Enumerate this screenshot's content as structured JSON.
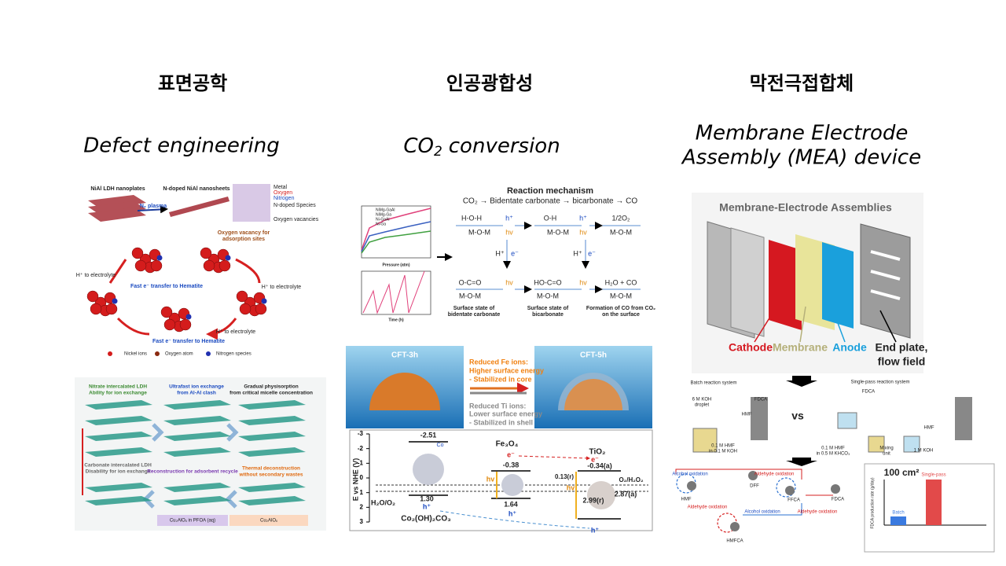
{
  "slide": {
    "columns": [
      {
        "heading": "표면공학",
        "subtitle": "Defect engineering",
        "figures": [
          {
            "labels": [
              "NiAl LDH nanoplates",
              "N-doped NiAl nanosheets",
              "N₂ plasma",
              "Metal",
              "Oxygen",
              "Nitrogen",
              "N-doped Species",
              "Oxygen vacancies",
              "Oxygen vacancy for",
              "adsorption sites",
              "H⁺ to electrolyte",
              "Fast e⁻ transfer to Hematite",
              "H⁺ to electrolyte",
              "Fast e⁻ transfer to Hematite",
              "Nickel ions",
              "Oxygen atom",
              "Nitrogen species",
              "H⁺ to electrolyte"
            ]
          },
          {
            "labels": [
              "Nitrate intercalated LDH",
              "Ability for ion exchange",
              "Ultrafast ion exchange",
              "from Al-Al clash",
              "Gradual physisorption",
              "from critical micelle concentration",
              "Carbonate intercalated LDH",
              "Disability for ion exchange",
              "Reconstruction for adsorbent recycle",
              "Thermal deconstruction",
              "without secondary wastes",
              "Cu₂AlOₓ in PFOA (aq)",
              "Cu₂AlOₓ"
            ]
          }
        ]
      },
      {
        "heading": "인공광합성",
        "subtitle": {
          "text": "CO",
          "sub": "2",
          "rest": "conversion"
        },
        "figures": [
          {
            "labels": [
              "Reaction mechanism",
              "CO₂ → Bidentate carbonate → bicarbonate → CO",
              "H-O-H",
              "M-O-M",
              "h⁺",
              "hv",
              "O-H",
              "M-O-M",
              "h⁺",
              "hv",
              "1/2O₂",
              "M-O-M",
              "H⁺",
              "e⁻",
              "H⁺",
              "e⁻",
              "O-C=O",
              "M-O-M",
              "hv",
              "HO-C=O",
              "M-O-M",
              "hv",
              "H₂O + CO",
              "M-O-M",
              "Surface state of",
              "bidentate carbonate",
              "Surface state of",
              "bicarbonate",
              "Formation of CO from CO₂",
              "on the surface",
              "Pressure (atm)",
              "Time (h)",
              "NiMg-GaAl",
              "NiMg-Ga",
              "Ni-GaAl",
              "Ni-Ga"
            ]
          },
          {
            "labels": [
              "CFT-3h",
              "CFT-5h",
              "Reduced Fe ions:",
              "Higher surface energy",
              "- Stabilized in core",
              "Reduced Ti ions:",
              "Lower surface energy",
              "- Stabilized in shell"
            ]
          },
          {
            "labels": [
              "E vs NHE (V)",
              "-2.51",
              "Co",
              "Fe₃O₄",
              "e⁻",
              "-0.38",
              "TiO₂",
              "e⁻",
              "-0.34(a)",
              "0.13(r)",
              "O₂/H₂O₂",
              "H₂O/O₂",
              "1.30",
              "h⁺",
              "1.64",
              "Co₂(OH)₂CO₃",
              "h⁺",
              "2.99(r)",
              "2.87(a)",
              "h⁺",
              "hv",
              "hv"
            ],
            "ticks": [
              -3,
              -2,
              -1,
              0,
              1,
              2,
              3
            ]
          }
        ]
      },
      {
        "heading": "막전극접합체",
        "subtitle_lines": [
          "Membrane Electrode",
          "Assembly (MEA) device"
        ],
        "figures": [
          {
            "labels": [
              "Membrane-Electrode Assemblies",
              "Cathode",
              "Membrane",
              "Anode",
              "End plate,",
              "flow field"
            ]
          },
          {
            "labels": [
              "Batch reaction system",
              "6 M KOH",
              "droplet",
              "FDCA",
              "HMF",
              "0.1 M HMF",
              "in 0.1 M KOH",
              "vs",
              "Single-pass reaction system",
              "FDCA",
              "HMF",
              "0.1 M HMF",
              "in 0.5 M KHCO₃",
              "Mixing",
              "unit",
              "1 M KOH"
            ]
          },
          {
            "labels": [
              "Alcohol oxidation",
              "Aldehyde oxidation",
              "HMF",
              "DFF",
              "Aldehyde oxidation",
              "FFCA",
              "FDCA",
              "HMFCA",
              "Alcohol oxidation",
              "Aldehyde oxidation",
              "100 cm²",
              "Batch",
              "Single-pass",
              "FDCA production rate (g/day)"
            ]
          }
        ]
      }
    ]
  }
}
